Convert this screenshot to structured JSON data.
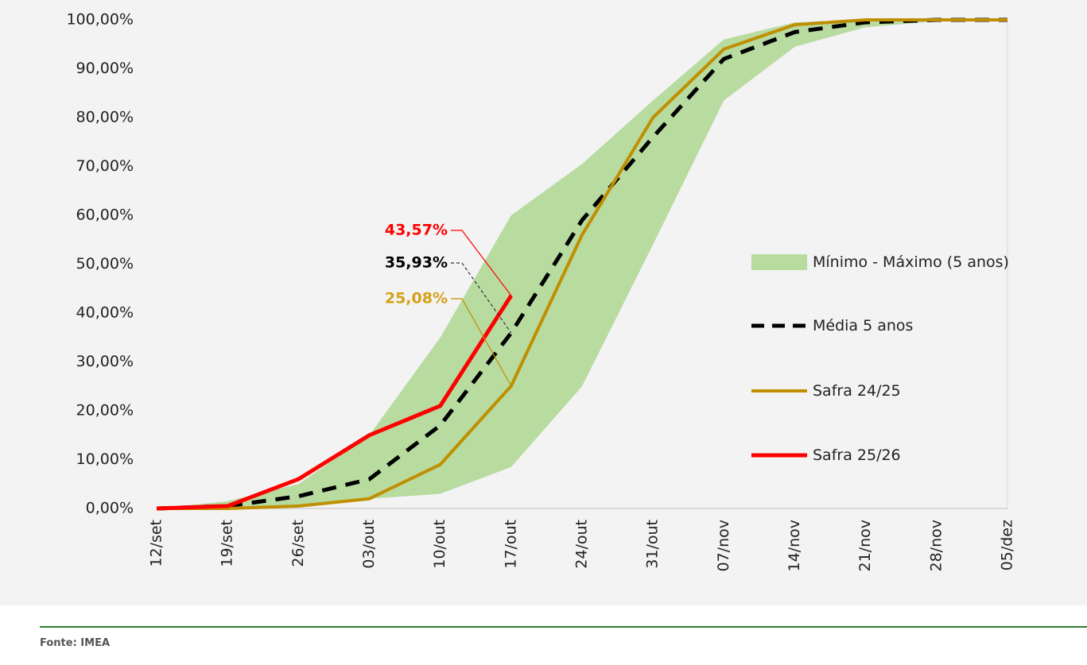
{
  "chart_data": {
    "type": "line",
    "source": "Fonte: IMEA",
    "categories": [
      "12/set",
      "19/set",
      "26/set",
      "03/out",
      "10/out",
      "17/out",
      "24/out",
      "31/out",
      "07/nov",
      "14/nov",
      "21/nov",
      "28/nov",
      "05/dez"
    ],
    "band": {
      "name": "Mínimo - Máximo (5 anos)",
      "color": "#b8dba0",
      "lower": [
        0,
        0,
        0.5,
        2,
        3,
        8.5,
        25,
        54,
        83.5,
        94.5,
        98.5,
        99.7,
        100
      ],
      "upper": [
        0,
        1.5,
        5,
        15,
        35,
        60,
        70.5,
        83.5,
        96,
        99.5,
        100,
        100,
        100
      ]
    },
    "series": [
      {
        "name": "Média 5 anos",
        "color": "#000000",
        "dashed": true,
        "width": 5,
        "values": [
          0,
          0.5,
          2.5,
          6,
          17,
          35.93,
          59,
          76,
          92,
          97.5,
          99.5,
          100,
          100
        ],
        "value_labels": [
          null,
          null,
          null,
          null,
          null,
          "35,93%",
          null,
          null,
          null,
          null,
          null,
          null,
          null
        ]
      },
      {
        "name": "Safra 24/25",
        "color": "#bf8f00",
        "dashed": false,
        "width": 4,
        "values": [
          0,
          0,
          0.5,
          2,
          9,
          25.08,
          56,
          80,
          94,
          99,
          100,
          100,
          100
        ],
        "value_labels": [
          null,
          null,
          null,
          null,
          null,
          "25,08%",
          null,
          null,
          null,
          null,
          null,
          null,
          null
        ]
      },
      {
        "name": "Safra 25/26",
        "color": "#ff0000",
        "dashed": false,
        "width": 5,
        "values": [
          0,
          0.5,
          6,
          15,
          21,
          43.57,
          null,
          null,
          null,
          null,
          null,
          null,
          null
        ],
        "value_labels": [
          null,
          null,
          null,
          null,
          null,
          "43,57%",
          null,
          null,
          null,
          null,
          null,
          null,
          null
        ]
      }
    ],
    "ylim": [
      0,
      100
    ],
    "yticks": [
      {
        "value": 0,
        "label": "0,00%"
      },
      {
        "value": 10,
        "label": "10,00%"
      },
      {
        "value": 20,
        "label": "20,00%"
      },
      {
        "value": 30,
        "label": "30,00%"
      },
      {
        "value": 40,
        "label": "40,00%"
      },
      {
        "value": 50,
        "label": "50,00%"
      },
      {
        "value": 60,
        "label": "60,00%"
      },
      {
        "value": 70,
        "label": "70,00%"
      },
      {
        "value": 80,
        "label": "80,00%"
      },
      {
        "value": 90,
        "label": "90,00%"
      },
      {
        "value": 100,
        "label": "100,00%"
      }
    ]
  }
}
